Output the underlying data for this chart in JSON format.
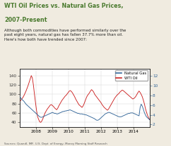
{
  "title_line1": "WTI Oil Prices vs. Natural Gas Prices,",
  "title_line2": "2007-Present",
  "subtitle": "Although both commodities have performed similarly over the\npast eight years, natural gas has fallen 37.7% more than oil.\nHere's how both have trended since 2007:",
  "source": "Sources: Quandl, IMF, U.S. Dept. of Energy, Money Morning Staff Research",
  "ng_color": "#336699",
  "wti_color": "#cc2222",
  "title_color": "#4a7a2e",
  "accent_color": "#4a7a2e",
  "bg_color": "#f0ebe0",
  "chart_bg": "#ffffff",
  "wti_ylim": [
    30,
    155
  ],
  "ng_ylim": [
    1.5,
    13.5
  ],
  "wti_yticks": [
    40,
    60,
    80,
    100,
    120,
    140
  ],
  "ng_yticks": [
    2,
    4,
    6,
    8,
    10,
    12
  ],
  "xticks": [
    2008,
    2009,
    2010,
    2011,
    2012,
    2013,
    2014
  ],
  "legend_natural_gas": "Natural Gas",
  "legend_wti_oil": "WTI Oil",
  "wti_oil": [
    85,
    87,
    90,
    93,
    97,
    102,
    107,
    113,
    119,
    126,
    133,
    140,
    135,
    120,
    100,
    82,
    65,
    52,
    46,
    41,
    40,
    43,
    48,
    54,
    60,
    64,
    68,
    71,
    74,
    77,
    78,
    76,
    74,
    71,
    69,
    67,
    70,
    75,
    79,
    83,
    87,
    90,
    93,
    96,
    98,
    101,
    104,
    107,
    108,
    106,
    103,
    99,
    95,
    90,
    86,
    82,
    78,
    76,
    74,
    72,
    75,
    80,
    86,
    92,
    97,
    100,
    103,
    107,
    110,
    108,
    105,
    100,
    97,
    94,
    91,
    88,
    85,
    82,
    78,
    75,
    72,
    70,
    68,
    66,
    68,
    72,
    76,
    80,
    84,
    88,
    92,
    95,
    98,
    100,
    102,
    105,
    107,
    109,
    108,
    106,
    104,
    102,
    100,
    98,
    96,
    94,
    92,
    90,
    91,
    93,
    96,
    100,
    104,
    107,
    104,
    100,
    95,
    88,
    80,
    70,
    62,
    55,
    50,
    46
  ],
  "natural_gas": [
    7.8,
    7.5,
    7.2,
    7.0,
    6.8,
    6.5,
    6.2,
    6.0,
    5.8,
    5.6,
    5.4,
    5.2,
    5.0,
    4.8,
    4.6,
    4.4,
    4.2,
    4.0,
    3.8,
    3.6,
    3.5,
    3.5,
    3.6,
    3.7,
    3.8,
    3.9,
    4.0,
    4.1,
    4.2,
    4.3,
    4.4,
    4.5,
    4.4,
    4.3,
    4.3,
    4.2,
    4.2,
    4.3,
    4.4,
    4.5,
    4.6,
    4.7,
    4.7,
    4.8,
    4.8,
    4.9,
    4.9,
    5.0,
    5.0,
    4.9,
    4.8,
    4.7,
    4.6,
    4.5,
    4.4,
    4.3,
    4.3,
    4.2,
    4.2,
    4.2,
    4.1,
    4.1,
    4.0,
    4.0,
    3.9,
    3.8,
    3.7,
    3.6,
    3.5,
    3.4,
    3.3,
    3.2,
    3.0,
    2.9,
    2.9,
    3.0,
    3.2,
    3.4,
    3.6,
    3.8,
    4.0,
    4.2,
    4.3,
    4.4,
    4.5,
    4.5,
    4.4,
    4.3,
    4.2,
    4.1,
    4.0,
    3.9,
    3.8,
    3.7,
    3.6,
    3.6,
    3.6,
    3.7,
    3.8,
    3.9,
    4.0,
    4.1,
    4.2,
    4.3,
    4.3,
    4.4,
    4.4,
    4.4,
    4.3,
    4.2,
    4.1,
    4.0,
    3.9,
    3.8,
    5.5,
    6.2,
    5.8,
    5.2,
    4.5,
    4.0,
    3.6,
    3.4,
    3.2,
    3.0
  ]
}
